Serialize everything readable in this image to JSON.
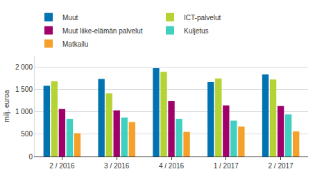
{
  "chart_data": {
    "type": "bar",
    "y_label": "milj. euroa",
    "categories": [
      "2 / 2016",
      "3 / 2016",
      "4 / 2016",
      "1 / 2017",
      "2 / 2017"
    ],
    "series": [
      {
        "name": "Muut",
        "color": "#0073b0",
        "values": [
          1580,
          1730,
          1970,
          1660,
          1830
        ]
      },
      {
        "name": "ICT-palvelut",
        "color": "#b5d334",
        "values": [
          1680,
          1410,
          1890,
          1740,
          1720
        ]
      },
      {
        "name": "Muut liike-elämän palvelut",
        "color": "#a1006b",
        "values": [
          1060,
          1030,
          1240,
          1140,
          1130
        ]
      },
      {
        "name": "Kuljetus",
        "color": "#3fd0c0",
        "values": [
          840,
          870,
          840,
          800,
          940
        ]
      },
      {
        "name": "Matkailu",
        "color": "#f5a02a",
        "values": [
          520,
          770,
          550,
          670,
          560
        ]
      }
    ],
    "ylim": [
      0,
      2250
    ],
    "yticks": [
      0,
      500,
      {
        "value": 1000,
        "label": "1 000"
      },
      {
        "value": 1500,
        "label": "1 500"
      },
      {
        "value": 2000,
        "label": "2 000"
      }
    ],
    "grid": true,
    "legend": "top"
  }
}
